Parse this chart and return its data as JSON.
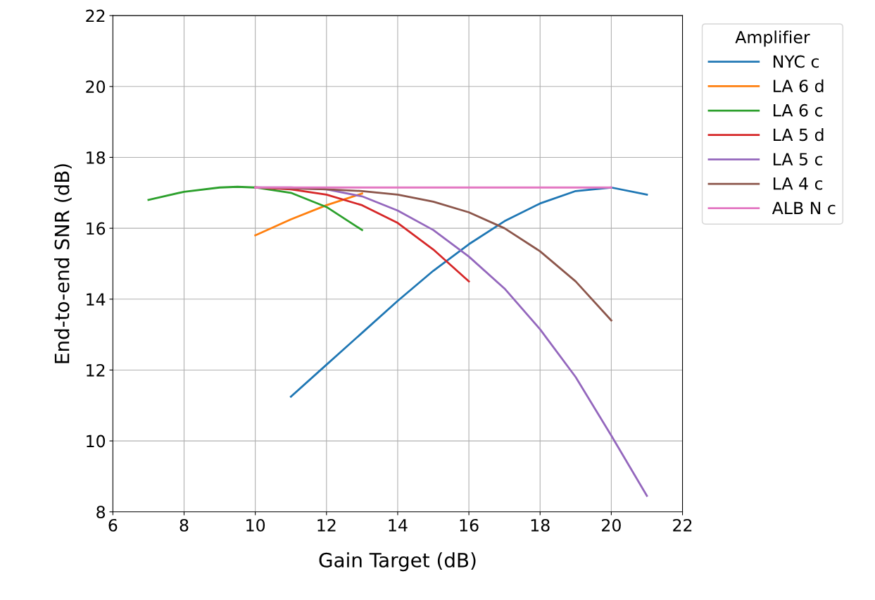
{
  "chart_data": {
    "type": "line",
    "xlabel": "Gain Target (dB)",
    "ylabel": "End-to-end SNR (dB)",
    "legend_title": "Amplifier",
    "legend": "right",
    "grid": true,
    "xlim": [
      6,
      22
    ],
    "xticks": [
      6,
      8,
      10,
      12,
      14,
      16,
      18,
      20,
      22
    ],
    "ylim": [
      8,
      22
    ],
    "yticks": [
      8,
      10,
      12,
      14,
      16,
      18,
      20,
      22
    ],
    "series": [
      {
        "name": "NYC c",
        "color": "#1f77b4",
        "x": [
          11,
          12,
          13,
          14,
          15,
          16,
          17,
          18,
          19,
          20,
          21
        ],
        "values": [
          11.25,
          12.15,
          13.05,
          13.95,
          14.8,
          15.55,
          16.2,
          16.7,
          17.05,
          17.15,
          16.95
        ]
      },
      {
        "name": "LA 6 d",
        "color": "#ff7f0e",
        "x": [
          10,
          11,
          12,
          13
        ],
        "values": [
          15.8,
          16.25,
          16.65,
          16.98
        ]
      },
      {
        "name": "LA 6 c",
        "color": "#2ca02c",
        "x": [
          7,
          8,
          9,
          9.5,
          10,
          11,
          12,
          13
        ],
        "values": [
          16.8,
          17.03,
          17.15,
          17.17,
          17.15,
          17.0,
          16.6,
          15.95
        ]
      },
      {
        "name": "LA 5 d",
        "color": "#d62728",
        "x": [
          10,
          11,
          12,
          13,
          14,
          15,
          16
        ],
        "values": [
          17.15,
          17.1,
          16.95,
          16.65,
          16.15,
          15.4,
          14.5
        ]
      },
      {
        "name": "LA 5 c",
        "color": "#9467bd",
        "x": [
          10,
          11,
          12,
          13,
          14,
          15,
          16,
          17,
          18,
          19,
          20,
          21
        ],
        "values": [
          17.15,
          17.15,
          17.1,
          16.9,
          16.5,
          15.95,
          15.2,
          14.3,
          13.15,
          11.8,
          10.15,
          8.45
        ]
      },
      {
        "name": "LA 4 c",
        "color": "#8c564b",
        "x": [
          10,
          12,
          13,
          14,
          15,
          16,
          17,
          18,
          19,
          20
        ],
        "values": [
          17.15,
          17.1,
          17.05,
          16.95,
          16.75,
          16.45,
          16.0,
          15.35,
          14.5,
          13.4
        ]
      },
      {
        "name": "ALB N c",
        "color": "#e377c2",
        "x": [
          10,
          20
        ],
        "values": [
          17.15,
          17.15
        ]
      }
    ]
  }
}
